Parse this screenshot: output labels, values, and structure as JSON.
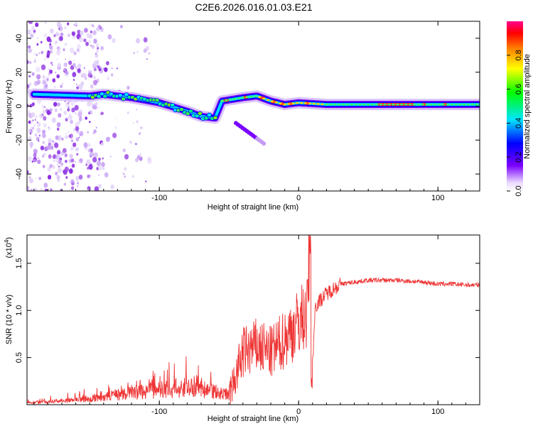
{
  "title": "C2E6.2026.016.01.03.E21",
  "chart_data": [
    {
      "type": "heatmap",
      "name": "spectrogram",
      "xlabel": "Height of straight line (km)",
      "ylabel": "Frequency (Hz)",
      "xlim": [
        -195,
        130
      ],
      "ylim": [
        -50,
        50
      ],
      "xticks": [
        "-100",
        "0",
        "100"
      ],
      "yticks": [
        "-40",
        "-20",
        "0",
        "20",
        "40"
      ],
      "colorbar": {
        "label": "Normalized spectral amplitude",
        "range": [
          0,
          1
        ],
        "ticks": [
          "0.0",
          "0.2",
          "0.4",
          "0.6",
          "0.8"
        ]
      },
      "trace": [
        {
          "x": -190,
          "y": 7
        },
        {
          "x": -150,
          "y": 6
        },
        {
          "x": -140,
          "y": 7
        },
        {
          "x": -120,
          "y": 5
        },
        {
          "x": -100,
          "y": 2
        },
        {
          "x": -80,
          "y": -3
        },
        {
          "x": -70,
          "y": -6
        },
        {
          "x": -60,
          "y": -7
        },
        {
          "x": -55,
          "y": 3
        },
        {
          "x": -40,
          "y": 5
        },
        {
          "x": -30,
          "y": 6
        },
        {
          "x": -20,
          "y": 3
        },
        {
          "x": -10,
          "y": 1
        },
        {
          "x": 0,
          "y": 2
        },
        {
          "x": 20,
          "y": 1
        },
        {
          "x": 60,
          "y": 1
        },
        {
          "x": 100,
          "y": 1
        },
        {
          "x": 130,
          "y": 1
        }
      ],
      "branch": [
        {
          "x": -45,
          "y": -10
        },
        {
          "x": -35,
          "y": -15
        },
        {
          "x": -25,
          "y": -22
        }
      ]
    },
    {
      "type": "line",
      "name": "snr",
      "xlabel": "Height of straight line (km)",
      "ylabel": "SNR (10 * v/v)",
      "scale_label": "(x10",
      "scale_exp": "4",
      "scale_close": ")",
      "xlim": [
        -195,
        130
      ],
      "ylim": [
        0,
        1.8
      ],
      "xticks": [
        "-100",
        "0",
        "100"
      ],
      "yticks": [
        "0.5",
        "1.0",
        "1.5"
      ],
      "color": "#ee3333",
      "series": [
        {
          "x": -195,
          "y": 0.02
        },
        {
          "x": -160,
          "y": 0.05
        },
        {
          "x": -140,
          "y": 0.08
        },
        {
          "x": -120,
          "y": 0.12
        },
        {
          "x": -100,
          "y": 0.16
        },
        {
          "x": -80,
          "y": 0.18
        },
        {
          "x": -60,
          "y": 0.14
        },
        {
          "x": -50,
          "y": 0.1
        },
        {
          "x": -45,
          "y": 0.3
        },
        {
          "x": -40,
          "y": 0.55
        },
        {
          "x": -30,
          "y": 0.62
        },
        {
          "x": -20,
          "y": 0.55
        },
        {
          "x": -15,
          "y": 0.62
        },
        {
          "x": -5,
          "y": 0.78
        },
        {
          "x": 2,
          "y": 0.92
        },
        {
          "x": 6,
          "y": 0.95
        },
        {
          "x": 8,
          "y": 1.7
        },
        {
          "x": 9,
          "y": 0.15
        },
        {
          "x": 12,
          "y": 1.05
        },
        {
          "x": 20,
          "y": 1.18
        },
        {
          "x": 30,
          "y": 1.28
        },
        {
          "x": 50,
          "y": 1.32
        },
        {
          "x": 70,
          "y": 1.32
        },
        {
          "x": 90,
          "y": 1.3
        },
        {
          "x": 100,
          "y": 1.28
        },
        {
          "x": 110,
          "y": 1.28
        },
        {
          "x": 120,
          "y": 1.27
        },
        {
          "x": 130,
          "y": 1.27
        }
      ]
    }
  ]
}
